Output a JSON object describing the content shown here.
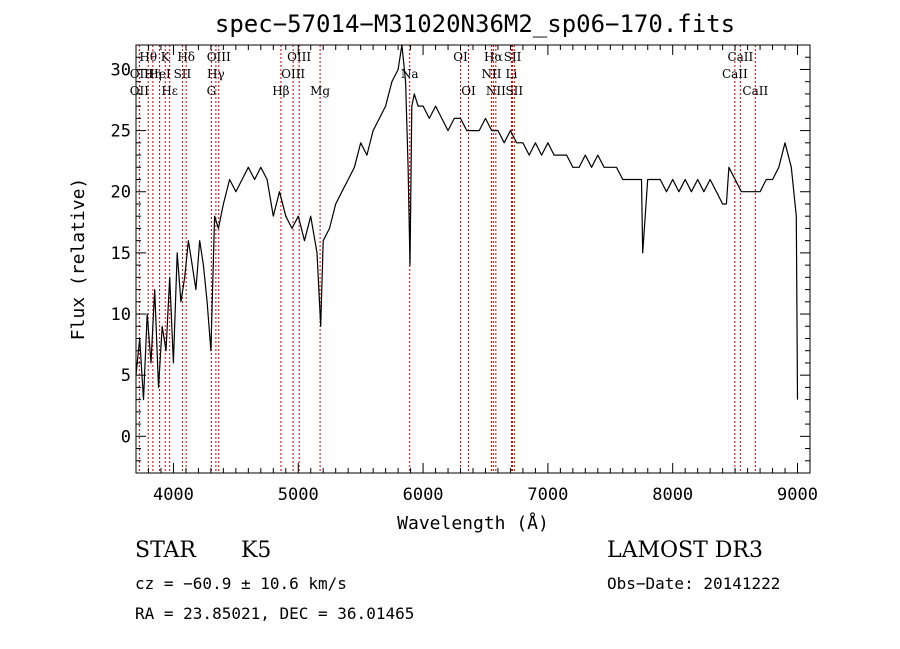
{
  "chart_data": {
    "type": "line",
    "title": "spec−57014−M31020N36M2_sp06−170.fits",
    "xlabel": "Wavelength (Å)",
    "ylabel": "Flux (relative)",
    "xlim": [
      3700,
      9100
    ],
    "ylim": [
      -3,
      32
    ],
    "xticks": [
      4000,
      5000,
      6000,
      7000,
      8000,
      9000
    ],
    "yticks": [
      0,
      5,
      10,
      15,
      20,
      25,
      30
    ],
    "series": [
      {
        "name": "flux",
        "x": [
          3700,
          3730,
          3760,
          3790,
          3820,
          3850,
          3880,
          3910,
          3940,
          3970,
          4000,
          4030,
          4060,
          4090,
          4120,
          4150,
          4180,
          4210,
          4240,
          4270,
          4300,
          4330,
          4360,
          4400,
          4450,
          4500,
          4550,
          4600,
          4650,
          4700,
          4750,
          4800,
          4850,
          4900,
          4950,
          5000,
          5050,
          5100,
          5150,
          5180,
          5200,
          5250,
          5300,
          5350,
          5400,
          5450,
          5500,
          5550,
          5600,
          5650,
          5700,
          5750,
          5800,
          5830,
          5860,
          5880,
          5895,
          5910,
          5930,
          5960,
          6000,
          6050,
          6100,
          6150,
          6200,
          6250,
          6300,
          6350,
          6400,
          6450,
          6500,
          6550,
          6600,
          6650,
          6700,
          6750,
          6800,
          6850,
          6900,
          6950,
          7000,
          7050,
          7100,
          7150,
          7200,
          7250,
          7300,
          7350,
          7400,
          7450,
          7500,
          7550,
          7600,
          7650,
          7700,
          7750,
          7760,
          7800,
          7850,
          7900,
          7950,
          8000,
          8050,
          8100,
          8150,
          8200,
          8250,
          8300,
          8350,
          8400,
          8430,
          8450,
          8500,
          8550,
          8600,
          8650,
          8700,
          8750,
          8800,
          8850,
          8900,
          8950,
          8990,
          9000
        ],
        "y": [
          5,
          8,
          3,
          10,
          6,
          12,
          4,
          9,
          7,
          13,
          6,
          15,
          11,
          13,
          16,
          14,
          12,
          16,
          14,
          11,
          7,
          18,
          17,
          19,
          21,
          20,
          21,
          22,
          21,
          22,
          21,
          18,
          20,
          18,
          17,
          18,
          16,
          18,
          15,
          9,
          16,
          17,
          19,
          20,
          21,
          22,
          24,
          23,
          25,
          26,
          27,
          29,
          30,
          32,
          29,
          22,
          14,
          27,
          28,
          27,
          27,
          26,
          27,
          26,
          25,
          26,
          26,
          25,
          25,
          25,
          26,
          25,
          25,
          24,
          25,
          24,
          24,
          23,
          24,
          23,
          24,
          23,
          23,
          23,
          22,
          22,
          23,
          22,
          23,
          22,
          22,
          22,
          21,
          21,
          21,
          21,
          15,
          21,
          21,
          21,
          20,
          21,
          20,
          21,
          20,
          21,
          20,
          21,
          20,
          19,
          19,
          22,
          21,
          20,
          20,
          20,
          20,
          21,
          21,
          22,
          24,
          22,
          18,
          3
        ]
      }
    ],
    "spectral_lines": [
      {
        "label": "Hθ",
        "x": 3798,
        "row": 1
      },
      {
        "label": "K",
        "x": 3934,
        "row": 1
      },
      {
        "label": "Hδ",
        "x": 4102,
        "row": 1
      },
      {
        "label": "OIII",
        "x": 4363,
        "row": 1
      },
      {
        "label": "OIII",
        "x": 5007,
        "row": 1
      },
      {
        "label": "OI",
        "x": 6300,
        "row": 1
      },
      {
        "label": "Hα",
        "x": 6563,
        "row": 1
      },
      {
        "label": "SII",
        "x": 6717,
        "row": 1
      },
      {
        "label": "CaII",
        "x": 8542,
        "row": 1
      },
      {
        "label": "OII",
        "x": 3727,
        "row": 2
      },
      {
        "label": "Hη",
        "x": 3835,
        "row": 2
      },
      {
        "label": "HeI",
        "x": 3889,
        "row": 2
      },
      {
        "label": "SII",
        "x": 4072,
        "row": 2
      },
      {
        "label": "Hγ",
        "x": 4340,
        "row": 2
      },
      {
        "label": "OIII",
        "x": 4959,
        "row": 2
      },
      {
        "label": "Na",
        "x": 5893,
        "row": 2
      },
      {
        "label": "NII",
        "x": 6548,
        "row": 2
      },
      {
        "label": "Li",
        "x": 6708,
        "row": 2
      },
      {
        "label": "CaII",
        "x": 8498,
        "row": 2
      },
      {
        "label": "OII",
        "x": 3727,
        "row": 3
      },
      {
        "label": "Hε",
        "x": 3970,
        "row": 3
      },
      {
        "label": "G",
        "x": 4304,
        "row": 3
      },
      {
        "label": "Hβ",
        "x": 4861,
        "row": 3
      },
      {
        "label": "Mg",
        "x": 5175,
        "row": 3
      },
      {
        "label": "OI",
        "x": 6364,
        "row": 3
      },
      {
        "label": "NII",
        "x": 6583,
        "row": 3
      },
      {
        "label": "SII",
        "x": 6731,
        "row": 3
      },
      {
        "label": "CaII",
        "x": 8662,
        "row": 3
      }
    ]
  },
  "info": {
    "object_class": "STAR",
    "subclass": "K5",
    "survey": "LAMOST DR3",
    "cz": "cz = −60.9 ± 10.6 km/s",
    "obs_date": "Obs−Date: 20141222",
    "coords": "RA =  23.85021, DEC =  36.01465"
  }
}
